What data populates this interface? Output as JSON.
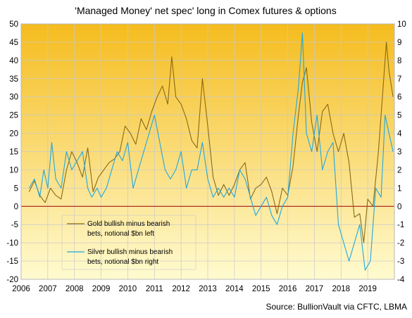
{
  "chart_data": {
    "type": "line",
    "title": "'Managed Money' net spec' long in Comex futures  & options",
    "source": "Source: BullionVault via CFTC, LBMA",
    "x_tick_labels": [
      "2006",
      "2007",
      "2008",
      "2009",
      "2010",
      "2011",
      "2012",
      "2013",
      "2014",
      "2015",
      "2016",
      "2017",
      "2018",
      "2019"
    ],
    "xlim": [
      2006.0,
      2020.0
    ],
    "ylim_left": [
      -20,
      50
    ],
    "ylim_right": [
      -4,
      10
    ],
    "left_ticks": [
      -20,
      -15,
      -10,
      -5,
      0,
      5,
      10,
      15,
      20,
      25,
      30,
      35,
      40,
      45,
      50
    ],
    "right_ticks": [
      -4,
      -3,
      -2,
      -1,
      0,
      1,
      2,
      3,
      4,
      5,
      6,
      7,
      8,
      9,
      10
    ],
    "grid": true,
    "legend_position": "lower-left",
    "colors": {
      "gold": "#8B6914",
      "silver": "#1FA8E0",
      "zero_line": "#A00000",
      "background_top": "#F5BC1E",
      "background_bottom": "#FFFBD0"
    },
    "series": [
      {
        "name": "Gold bullish minus bearish bets, notional $bn left",
        "axis": "left",
        "x": [
          2006.3,
          2006.5,
          2006.7,
          2006.9,
          2007.1,
          2007.3,
          2007.5,
          2007.7,
          2007.9,
          2008.1,
          2008.3,
          2008.5,
          2008.7,
          2008.9,
          2009.1,
          2009.3,
          2009.5,
          2009.7,
          2009.9,
          2010.1,
          2010.3,
          2010.5,
          2010.7,
          2010.9,
          2011.1,
          2011.3,
          2011.5,
          2011.65,
          2011.8,
          2012.0,
          2012.2,
          2012.4,
          2012.6,
          2012.8,
          2013.0,
          2013.2,
          2013.4,
          2013.6,
          2013.8,
          2014.0,
          2014.2,
          2014.4,
          2014.6,
          2014.8,
          2015.0,
          2015.2,
          2015.4,
          2015.6,
          2015.8,
          2016.0,
          2016.2,
          2016.4,
          2016.55,
          2016.7,
          2016.9,
          2017.1,
          2017.3,
          2017.5,
          2017.7,
          2017.9,
          2018.1,
          2018.3,
          2018.5,
          2018.7,
          2018.85,
          2019.0,
          2019.2,
          2019.4,
          2019.55,
          2019.7,
          2019.8,
          2019.95
        ],
        "y": [
          4,
          7,
          3,
          1,
          5,
          3,
          2,
          10,
          15,
          12,
          8,
          16,
          4,
          8,
          10,
          12,
          13,
          15,
          22,
          20,
          17,
          24,
          21,
          26,
          30,
          33,
          28,
          41,
          30,
          28,
          24,
          18,
          16,
          35,
          22,
          8,
          3,
          6,
          3,
          6,
          10,
          12,
          2,
          5,
          6,
          8,
          4,
          -2,
          5,
          3,
          11,
          25,
          34,
          38,
          23,
          15,
          26,
          28,
          20,
          15,
          20,
          12,
          -3,
          -2,
          -10,
          2,
          0,
          15,
          30,
          45,
          37,
          30
        ]
      },
      {
        "name": "Silver bullish minus bearish bets, notional $bn right",
        "axis": "right",
        "x": [
          2006.3,
          2006.5,
          2006.7,
          2006.85,
          2007.0,
          2007.15,
          2007.3,
          2007.5,
          2007.7,
          2007.9,
          2008.1,
          2008.3,
          2008.5,
          2008.65,
          2008.85,
          2009.0,
          2009.2,
          2009.4,
          2009.6,
          2009.8,
          2010.0,
          2010.2,
          2010.4,
          2010.6,
          2010.8,
          2011.0,
          2011.2,
          2011.4,
          2011.6,
          2011.8,
          2012.0,
          2012.2,
          2012.4,
          2012.6,
          2012.8,
          2013.0,
          2013.2,
          2013.4,
          2013.6,
          2013.8,
          2014.0,
          2014.2,
          2014.4,
          2014.6,
          2014.8,
          2015.0,
          2015.2,
          2015.4,
          2015.6,
          2015.8,
          2016.0,
          2016.2,
          2016.4,
          2016.55,
          2016.7,
          2016.9,
          2017.1,
          2017.3,
          2017.5,
          2017.7,
          2017.9,
          2018.1,
          2018.3,
          2018.5,
          2018.7,
          2018.9,
          2019.1,
          2019.3,
          2019.5,
          2019.65,
          2019.8,
          2019.95
        ],
        "y": [
          1,
          1.5,
          0.5,
          2,
          1,
          3.5,
          1.5,
          1,
          3,
          2,
          2.5,
          3,
          1,
          0.5,
          1,
          0.5,
          1,
          2,
          3,
          2.5,
          3.5,
          1,
          2,
          3,
          4,
          5,
          3.5,
          2,
          1.5,
          2,
          3,
          1,
          2,
          2,
          3.5,
          1.5,
          0.5,
          1,
          0.5,
          1,
          0.5,
          2,
          1.5,
          0.5,
          -0.5,
          0,
          0.5,
          -0.5,
          -1,
          0,
          0.5,
          4,
          6.5,
          9.5,
          4,
          3,
          5,
          2,
          3,
          3.5,
          -1,
          -2,
          -3,
          -2,
          -1,
          -3.5,
          -3,
          1,
          0.5,
          5,
          4,
          3
        ]
      }
    ]
  }
}
